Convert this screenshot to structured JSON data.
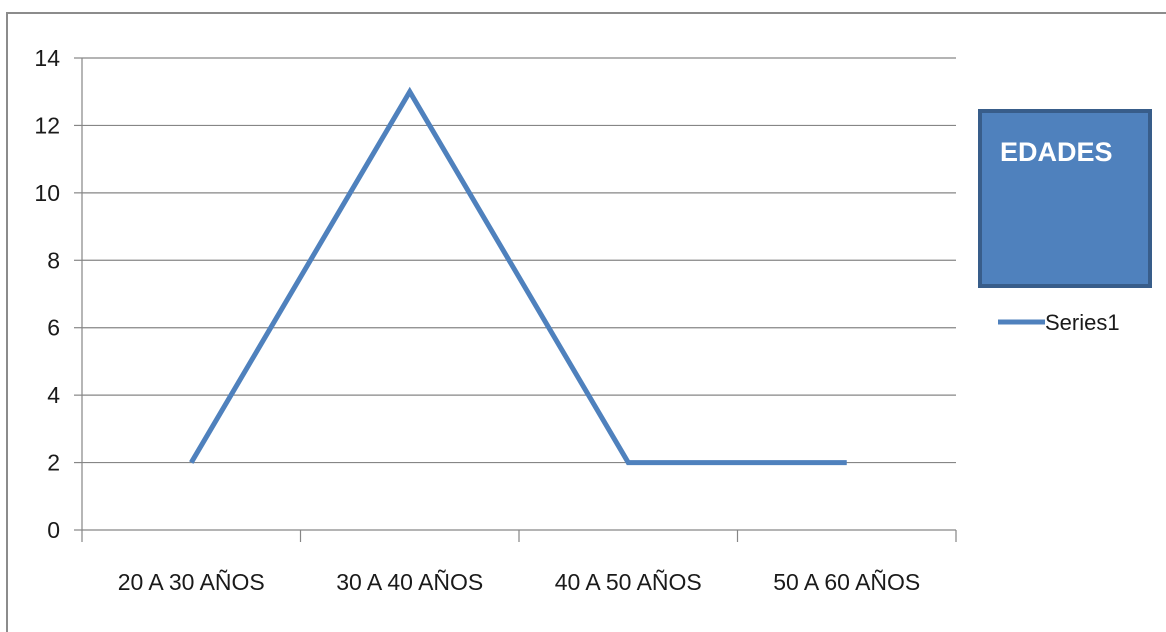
{
  "chart_data": {
    "type": "line",
    "categories": [
      "20 A 30 AÑOS",
      "30 A 40 AÑOS",
      "40 A 50 AÑOS",
      "50 A 60 AÑOS"
    ],
    "series": [
      {
        "name": "Series1",
        "values": [
          2,
          13,
          2,
          2
        ],
        "color": "#4f81bd"
      }
    ],
    "title": "EDADES",
    "xlabel": "",
    "ylabel": "",
    "ylim": [
      0,
      14
    ],
    "yticks": [
      0,
      2,
      4,
      6,
      8,
      10,
      12,
      14
    ],
    "grid": true,
    "legend_position": "right",
    "title_box_color": "#4f81bd",
    "title_box_border": "#385d8a"
  }
}
